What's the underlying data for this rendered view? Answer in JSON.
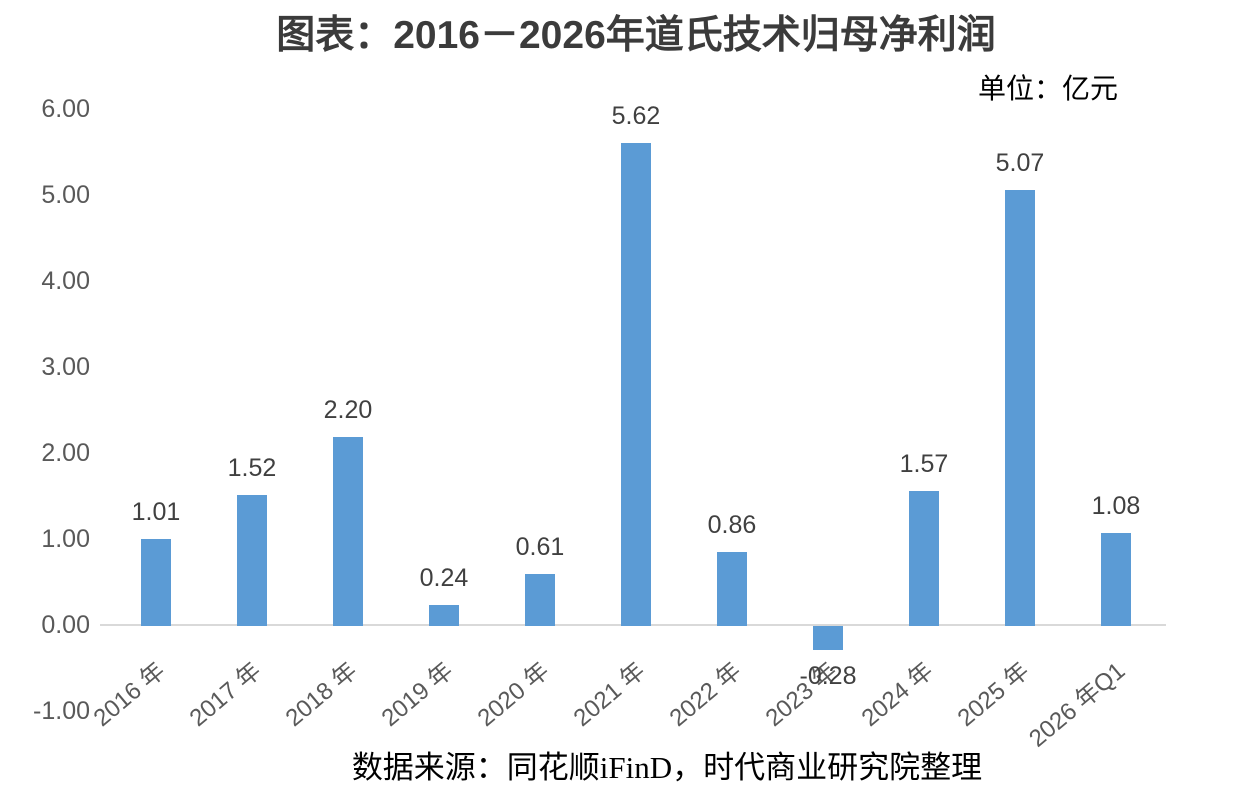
{
  "page": {
    "title_label": "图表：2016－2026年道氏技术归母净利润",
    "unit_label": "单位：亿元",
    "source_label": "数据来源：同花顺iFinD，时代商业研究院整理"
  },
  "chart_data": {
    "type": "bar",
    "title": "图表：2016－2026年道氏技术归母净利润",
    "unit": "单位：亿元",
    "source": "数据来源：同花顺iFinD，时代商业研究院整理",
    "categories": [
      "2016 年",
      "2017 年",
      "2018 年",
      "2019 年",
      "2020 年",
      "2021 年",
      "2022 年",
      "2023 年",
      "2024 年",
      "2025 年",
      "2026 年Q1"
    ],
    "values": [
      1.01,
      1.52,
      2.2,
      0.24,
      0.61,
      5.62,
      0.86,
      -0.28,
      1.57,
      5.07,
      1.08
    ],
    "data_labels": [
      "1.01",
      "1.52",
      "2.20",
      "0.24",
      "0.61",
      "5.62",
      "0.86",
      "-0.28",
      "1.57",
      "5.07",
      "1.08"
    ],
    "xlabel": "",
    "ylabel": "",
    "ylim": [
      -1.0,
      6.0
    ],
    "yticks": [
      "6.00",
      "5.00",
      "4.00",
      "3.00",
      "2.00",
      "1.00",
      "0.00",
      "-1.00"
    ],
    "ytick_values": [
      6,
      5,
      4,
      3,
      2,
      1,
      0,
      -1
    ],
    "grid": false,
    "legend": "none",
    "bar_color": "#5B9BD5",
    "axis_line_color": "#D9D9D9",
    "tick_text_color": "#595959",
    "data_label_color": "#404040"
  }
}
